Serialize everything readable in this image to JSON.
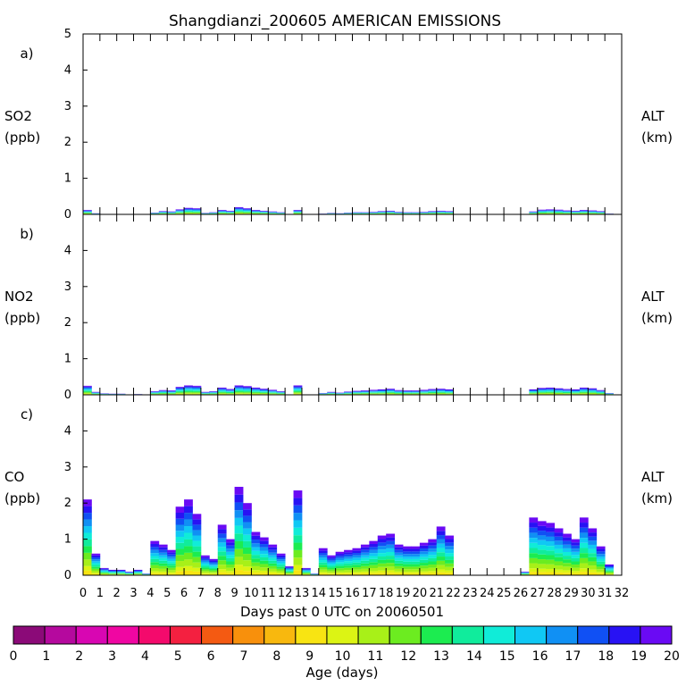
{
  "chart_data": {
    "type": "area",
    "title": "Shangdianzi_200605 AMERICAN EMISSIONS",
    "xlabel": "Days past 0 UTC on 20060501",
    "xlim": [
      0,
      32
    ],
    "x_ticks": [
      "0",
      "1",
      "2",
      "3",
      "4",
      "5",
      "6",
      "7",
      "8",
      "9",
      "10",
      "11",
      "12",
      "13",
      "14",
      "15",
      "16",
      "17",
      "18",
      "19",
      "20",
      "21",
      "22",
      "23",
      "24",
      "25",
      "26",
      "27",
      "28",
      "29",
      "30",
      "31",
      "32"
    ],
    "panels": [
      {
        "letter": "a)",
        "ylabel": "SO2",
        "yunit": "(ppb)",
        "right_label": "ALT",
        "right_unit": "(km)",
        "ylim": [
          0,
          5
        ],
        "y_ticks": [
          "0",
          "1",
          "2",
          "3",
          "4",
          "5"
        ],
        "series": {
          "x": [
            0,
            0.5,
            1,
            1.5,
            2,
            2.5,
            3,
            3.5,
            4,
            4.5,
            5,
            5.5,
            6,
            6.5,
            7,
            7.5,
            8,
            8.5,
            9,
            9.5,
            10,
            10.5,
            11,
            11.5,
            12,
            12.5,
            13,
            13.5,
            14,
            14.5,
            15,
            15.5,
            16,
            16.5,
            17,
            17.5,
            18,
            18.5,
            19,
            19.5,
            20,
            20.5,
            21,
            21.5,
            22,
            22.5,
            23,
            23.5,
            24,
            24.5,
            25,
            25.5,
            26,
            26.5,
            27,
            27.5,
            28,
            28.5,
            29,
            29.5,
            30,
            30.5,
            31
          ],
          "y": [
            0.12,
            0.03,
            0.01,
            0.01,
            0.01,
            0,
            0.01,
            0,
            0.05,
            0.09,
            0.08,
            0.14,
            0.18,
            0.17,
            0.04,
            0.06,
            0.12,
            0.1,
            0.2,
            0.17,
            0.12,
            0.1,
            0.08,
            0.06,
            0,
            0.12,
            0,
            0,
            0.02,
            0.04,
            0.03,
            0.05,
            0.06,
            0.06,
            0.07,
            0.09,
            0.1,
            0.07,
            0.06,
            0.06,
            0.07,
            0.09,
            0.1,
            0.09,
            0,
            0,
            0,
            0,
            0,
            0,
            0,
            0,
            0,
            0.08,
            0.13,
            0.14,
            0.13,
            0.11,
            0.1,
            0.12,
            0.11,
            0.09,
            0.02
          ]
        }
      },
      {
        "letter": "b)",
        "ylabel": "NO2",
        "yunit": "(ppb)",
        "right_label": "ALT",
        "right_unit": "(km)",
        "ylim": [
          0,
          5
        ],
        "y_ticks": [
          "0",
          "1",
          "2",
          "3",
          "4"
        ],
        "series": {
          "x": [
            0,
            0.5,
            1,
            1.5,
            2,
            2.5,
            3,
            3.5,
            4,
            4.5,
            5,
            5.5,
            6,
            6.5,
            7,
            7.5,
            8,
            8.5,
            9,
            9.5,
            10,
            10.5,
            11,
            11.5,
            12,
            12.5,
            13,
            13.5,
            14,
            14.5,
            15,
            15.5,
            16,
            16.5,
            17,
            17.5,
            18,
            18.5,
            19,
            19.5,
            20,
            20.5,
            21,
            21.5,
            22,
            22.5,
            23,
            23.5,
            24,
            24.5,
            25,
            25.5,
            26,
            26.5,
            27,
            27.5,
            28,
            28.5,
            29,
            29.5,
            30,
            30.5,
            31
          ],
          "y": [
            0.25,
            0.08,
            0.04,
            0.03,
            0.03,
            0.01,
            0.02,
            0,
            0.1,
            0.13,
            0.12,
            0.22,
            0.26,
            0.25,
            0.08,
            0.1,
            0.2,
            0.16,
            0.26,
            0.24,
            0.2,
            0.17,
            0.14,
            0.1,
            0,
            0.26,
            0,
            0,
            0.05,
            0.08,
            0.06,
            0.09,
            0.11,
            0.12,
            0.14,
            0.15,
            0.17,
            0.13,
            0.12,
            0.12,
            0.14,
            0.16,
            0.17,
            0.15,
            0,
            0,
            0,
            0,
            0,
            0,
            0,
            0,
            0,
            0.15,
            0.19,
            0.2,
            0.18,
            0.16,
            0.15,
            0.2,
            0.18,
            0.13,
            0.05
          ]
        }
      },
      {
        "letter": "c)",
        "ylabel": "CO",
        "yunit": "(ppb)",
        "right_label": "ALT",
        "right_unit": "(km)",
        "ylim": [
          0,
          5
        ],
        "y_ticks": [
          "0",
          "1",
          "2",
          "3",
          "4"
        ],
        "series": {
          "x": [
            0,
            0.5,
            1,
            1.5,
            2,
            2.5,
            3,
            3.5,
            4,
            4.5,
            5,
            5.5,
            6,
            6.5,
            7,
            7.5,
            8,
            8.5,
            9,
            9.5,
            10,
            10.5,
            11,
            11.5,
            12,
            12.5,
            13,
            13.5,
            14,
            14.5,
            15,
            15.5,
            16,
            16.5,
            17,
            17.5,
            18,
            18.5,
            19,
            19.5,
            20,
            20.5,
            21,
            21.5,
            22,
            22.5,
            23,
            23.5,
            24,
            24.5,
            25,
            25.5,
            26,
            26.5,
            27,
            27.5,
            28,
            28.5,
            29,
            29.5,
            30,
            30.5,
            31
          ],
          "y": [
            2.1,
            0.6,
            0.2,
            0.15,
            0.15,
            0.1,
            0.15,
            0.05,
            0.95,
            0.85,
            0.7,
            1.9,
            2.1,
            1.7,
            0.55,
            0.45,
            1.4,
            1.0,
            2.45,
            2.0,
            1.2,
            1.05,
            0.85,
            0.6,
            0.25,
            2.35,
            0.2,
            0.05,
            0.75,
            0.55,
            0.65,
            0.7,
            0.75,
            0.85,
            0.95,
            1.1,
            1.15,
            0.85,
            0.8,
            0.8,
            0.9,
            1.0,
            1.35,
            1.1,
            0,
            0,
            0,
            0,
            0,
            0,
            0,
            0,
            0.1,
            1.6,
            1.5,
            1.45,
            1.3,
            1.15,
            1.0,
            1.6,
            1.3,
            0.8,
            0.3
          ]
        }
      }
    ],
    "colorbar": {
      "label": "Age (days)",
      "ticks": [
        "0",
        "1",
        "2",
        "3",
        "4",
        "5",
        "6",
        "7",
        "8",
        "9",
        "10",
        "11",
        "12",
        "13",
        "14",
        "15",
        "16",
        "17",
        "18",
        "19",
        "20"
      ],
      "colors": [
        "#8b0a78",
        "#b5099e",
        "#d806b2",
        "#f006a2",
        "#f40a6c",
        "#f42040",
        "#f45a12",
        "#f8900c",
        "#f8b80e",
        "#f8e412",
        "#dcf414",
        "#a8f018",
        "#6cec20",
        "#1cec50",
        "#10ec9c",
        "#10ecd8",
        "#10c8f4",
        "#1090f4",
        "#1050f4",
        "#2812f4",
        "#6a0af4"
      ]
    }
  }
}
